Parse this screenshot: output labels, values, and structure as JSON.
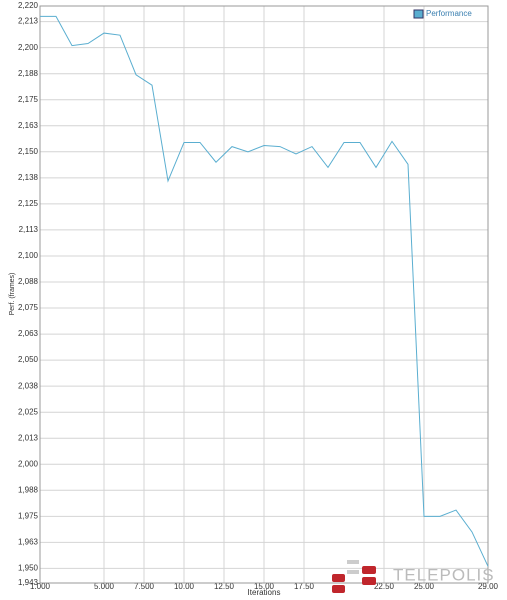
{
  "chart_data": {
    "type": "line",
    "xlabel": "Iterations",
    "ylabel": "Perf. (frames)",
    "watermark": "TELEPOLIS",
    "x": [
      1,
      2,
      3,
      4,
      5,
      6,
      7,
      8,
      9,
      10,
      11,
      12,
      13,
      14,
      15,
      16,
      17,
      18,
      19,
      20,
      21,
      22,
      23,
      24,
      25,
      26,
      27,
      28,
      29
    ],
    "series": [
      {
        "name": "Performance",
        "color": "#5aaed0",
        "values": [
          2215,
          2215,
          2201,
          2202,
          2207,
          2206,
          2187,
          2182,
          2136,
          2154.5,
          2154.5,
          2145,
          2152.5,
          2150,
          2153,
          2152.5,
          2149,
          2152.5,
          2142.5,
          2154.5,
          2154.5,
          2142.5,
          2155,
          2144,
          1975,
          1975,
          1978,
          1967.5,
          1951
        ]
      }
    ],
    "xlim": [
      1,
      29
    ],
    "xticks": [
      {
        "value": 1,
        "label": "1.000"
      },
      {
        "value": 5,
        "label": "5.000"
      },
      {
        "value": 7.5,
        "label": "7.500"
      },
      {
        "value": 10,
        "label": "10.00"
      },
      {
        "value": 12.5,
        "label": "12.50"
      },
      {
        "value": 15,
        "label": "15.00"
      },
      {
        "value": 17.5,
        "label": "17.50"
      },
      {
        "value": 22.5,
        "label": "22.50"
      },
      {
        "value": 25,
        "label": "25.00"
      },
      {
        "value": 29,
        "label": "29.00"
      }
    ],
    "ylim": [
      1943,
      2220
    ],
    "yticks": [
      {
        "value": 1943,
        "label": "1,943"
      },
      {
        "value": 1950,
        "label": "1,950"
      },
      {
        "value": 1962.5,
        "label": "1,963"
      },
      {
        "value": 1975,
        "label": "1,975"
      },
      {
        "value": 1987.5,
        "label": "1,988"
      },
      {
        "value": 2000,
        "label": "2,000"
      },
      {
        "value": 2012.5,
        "label": "2,013"
      },
      {
        "value": 2025,
        "label": "2,025"
      },
      {
        "value": 2037.5,
        "label": "2,038"
      },
      {
        "value": 2050,
        "label": "2,050"
      },
      {
        "value": 2062.5,
        "label": "2,063"
      },
      {
        "value": 2075,
        "label": "2,075"
      },
      {
        "value": 2087.5,
        "label": "2,088"
      },
      {
        "value": 2100,
        "label": "2,100"
      },
      {
        "value": 2112.5,
        "label": "2,113"
      },
      {
        "value": 2125,
        "label": "2,125"
      },
      {
        "value": 2137.5,
        "label": "2,138"
      },
      {
        "value": 2150,
        "label": "2,150"
      },
      {
        "value": 2162.5,
        "label": "2,163"
      },
      {
        "value": 2175,
        "label": "2,175"
      },
      {
        "value": 2187.5,
        "label": "2,188"
      },
      {
        "value": 2200,
        "label": "2,200"
      },
      {
        "value": 2212.5,
        "label": "2,213"
      },
      {
        "value": 2220,
        "label": "2,220"
      }
    ],
    "grid": true,
    "legend": "top-right"
  }
}
